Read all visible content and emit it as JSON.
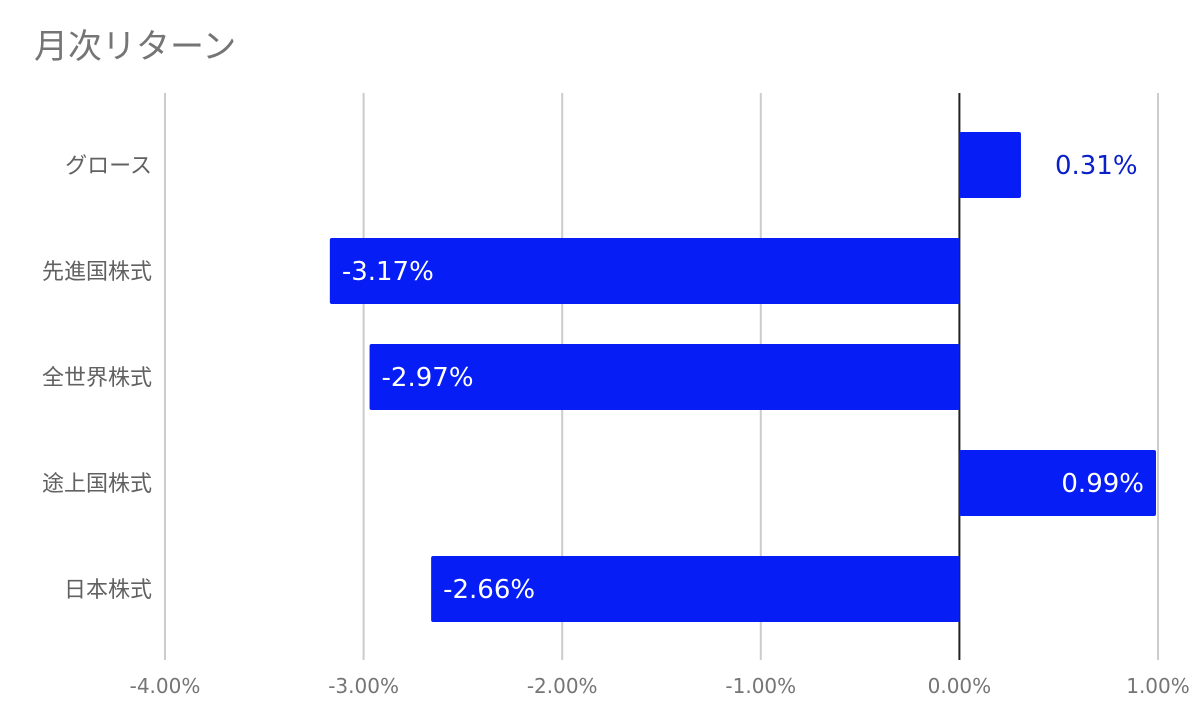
{
  "chart_data": {
    "type": "bar",
    "orientation": "horizontal",
    "title": "月次リターン",
    "categories": [
      "グロース",
      "先進国株式",
      "全世界株式",
      "途上国株式",
      "日本株式"
    ],
    "values": [
      0.31,
      -3.17,
      -2.97,
      0.99,
      -2.66
    ],
    "data_labels": [
      "0.31%",
      "-3.17%",
      "-2.97%",
      "0.99%",
      "-2.66%"
    ],
    "xlim": [
      -4,
      1
    ],
    "xticks": [
      -4,
      -3,
      -2,
      -1,
      0,
      1
    ],
    "xtick_labels": [
      "-4.00%",
      "-3.00%",
      "-2.00%",
      "-1.00%",
      "0.00%",
      "1.00%"
    ],
    "xlabel": "",
    "ylabel": "",
    "grid": true,
    "legend": "none",
    "colors": {
      "bar": "#061ef5",
      "label_inside": "#ffffff",
      "label_outside": "#0a20c8"
    }
  }
}
